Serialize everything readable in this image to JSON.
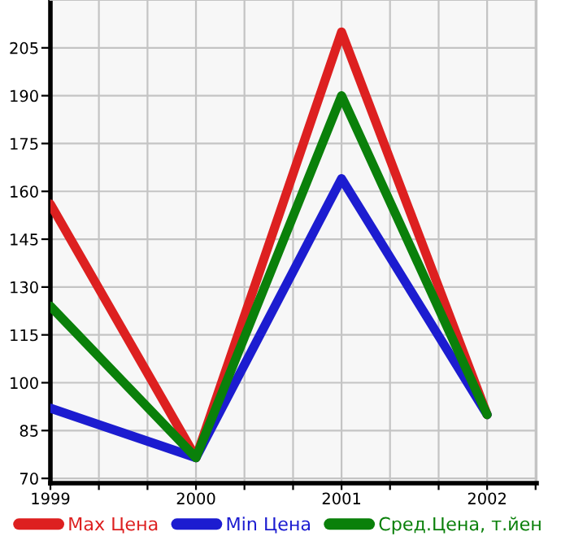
{
  "chart_data": {
    "type": "line",
    "x": [
      1999,
      2000,
      2001,
      2002
    ],
    "series": [
      {
        "name": "Max Цена",
        "color": "#dd2020",
        "values": [
          156,
          76.5,
          210,
          90
        ]
      },
      {
        "name": "Min Цена",
        "color": "#1c1cd0",
        "values": [
          92,
          76.5,
          164,
          90
        ]
      },
      {
        "name": "Сред.Цена, т.йен",
        "color": "#0a800a",
        "values": [
          124,
          76.5,
          190,
          90
        ]
      }
    ],
    "xlim": [
      1999,
      2002.34
    ],
    "xticks": [
      1999,
      {
        "value": 1999.333,
        "label": null
      },
      {
        "value": 1999.667,
        "label": null
      },
      2000,
      {
        "value": 2000.333,
        "label": null
      },
      {
        "value": 2000.667,
        "label": null
      },
      2001,
      {
        "value": 2001.333,
        "label": null
      },
      {
        "value": 2001.667,
        "label": null
      },
      2002,
      {
        "value": 2002.333,
        "label": null
      }
    ],
    "ylim": [
      68.5,
      220
    ],
    "yticks": [
      70,
      85,
      100,
      115,
      130,
      145,
      160,
      175,
      190,
      205
    ],
    "grid": true,
    "legend": "bottom",
    "marker": "none",
    "line_style": "solid"
  }
}
